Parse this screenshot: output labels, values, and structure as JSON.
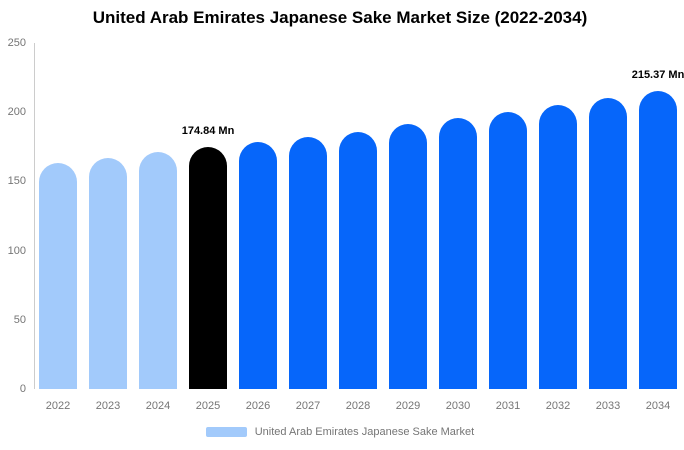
{
  "chart_data": {
    "type": "bar",
    "title": "United Arab Emirates Japanese Sake Market Size (2022-2034)",
    "xlabel": "",
    "ylabel": "",
    "unit": "Mn",
    "categories": [
      "2022",
      "2023",
      "2024",
      "2025",
      "2026",
      "2027",
      "2028",
      "2029",
      "2030",
      "2031",
      "2032",
      "2033",
      "2034"
    ],
    "values": [
      163.4,
      167.0,
      170.9,
      174.84,
      178.5,
      182.3,
      186.0,
      191.2,
      195.6,
      200.0,
      205.3,
      210.0,
      215.37
    ],
    "bar_roles": [
      "past",
      "past",
      "past",
      "highlight",
      "forecast",
      "forecast",
      "forecast",
      "forecast",
      "forecast",
      "forecast",
      "forecast",
      "forecast",
      "forecast"
    ],
    "palette": {
      "past": "#A2CAFB",
      "highlight": "#000000",
      "forecast": "#0666FA"
    },
    "annotations": [
      {
        "category": "2025",
        "text": "174.84 Mn"
      },
      {
        "category": "2034",
        "text": "215.37 Mn"
      }
    ],
    "ylim": [
      0,
      250
    ],
    "yticks": [
      0,
      50,
      100,
      150,
      200,
      250
    ],
    "grid": false,
    "legend": {
      "label": "United Arab Emirates Japanese Sake Market",
      "swatch_color": "#A2CAFB",
      "position": "bottom-center"
    },
    "colors": {
      "axis_line": "#cccccc",
      "tick_text": "#757575",
      "title_text": "#000000",
      "background": "#ffffff"
    }
  }
}
